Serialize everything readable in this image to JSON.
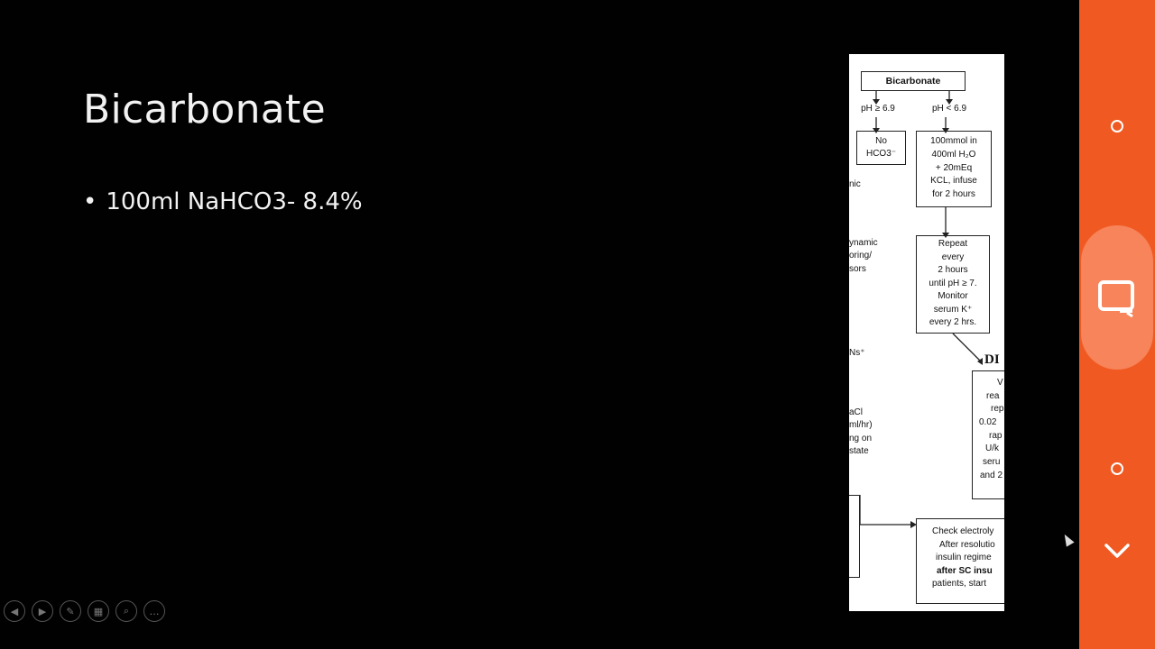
{
  "slide": {
    "title": "Bicarbonate",
    "bullets": [
      "100ml NaHCO3- 8.4%"
    ]
  },
  "flowchart": {
    "top_box": "Bicarbonate",
    "branch_left_label": "pH ≥ 6.9",
    "branch_right_label": "pH < 6.9",
    "no_hco3": [
      "No",
      "HCO3⁻"
    ],
    "dose_box": [
      "100mmol in",
      "400ml H₂O",
      "+ 20mEq",
      "KCL, infuse",
      "for 2 hours"
    ],
    "repeat_box": [
      "Repeat",
      "every",
      "2 hours",
      "until pH ≥ 7.",
      "Monitor",
      "serum K⁺",
      "every 2 hrs."
    ],
    "dka_fragment": "DI",
    "insulin_fragment": [
      "V",
      "rea",
      "rep",
      "0.02",
      "rap",
      "U/k",
      "seru",
      "and 2"
    ],
    "left_fragments": [
      "nic",
      "ynamic",
      "oring/",
      "sors",
      "Ns⁺",
      "aCl",
      "ml/hr)",
      "ng on",
      "state"
    ],
    "bottom_box": [
      "Check electroly",
      "After resolutio",
      "insulin regime",
      "after SC insu",
      "patients, start"
    ]
  },
  "controls": [
    {
      "name": "previous-icon",
      "glyph": "◀"
    },
    {
      "name": "next-icon",
      "glyph": "▶"
    },
    {
      "name": "pen-icon",
      "glyph": "✎"
    },
    {
      "name": "slides-grid-icon",
      "glyph": "▦"
    },
    {
      "name": "zoom-icon",
      "glyph": "⌕"
    },
    {
      "name": "more-icon",
      "glyph": "…"
    }
  ],
  "colors": {
    "sidebar": "#f05a22",
    "sidebar_highlight": "#f7845a",
    "slide_background": "#010101",
    "text": "#f2f2f2"
  }
}
